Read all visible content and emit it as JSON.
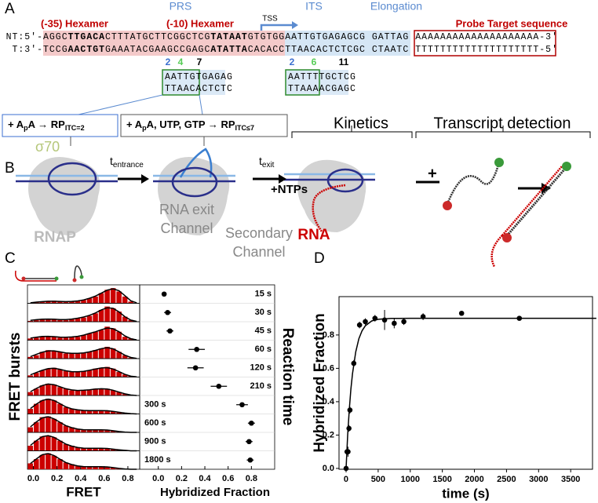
{
  "panels": {
    "a": "A",
    "b": "B",
    "c": "C",
    "d": "D"
  },
  "panel_a": {
    "prs": "PRS",
    "its": "ITS",
    "elongation": "Elongation",
    "hex35": "(-35) Hexamer",
    "hex10": "(-10) Hexamer",
    "tss": "TSS",
    "probe": "Probe Target sequence",
    "nt_prefix": "NT:5'-",
    "t_prefix": "T:3'-",
    "nt_strand": [
      {
        "text": "AGGC",
        "bold": false
      },
      {
        "text": "TTGACA",
        "bold": true
      },
      {
        "text": "CTTTATGCTTCGGCTCG",
        "bold": false
      },
      {
        "text": "TATAAT",
        "bold": true
      },
      {
        "text": "GTGTGG",
        "bold": false
      },
      {
        "text": "AATTGTGAGAGCG GATTAG",
        "bold": false
      },
      {
        "text": "AAAAAAAAAAAAAAAAAAAA",
        "bold": false
      },
      {
        "text": "-3'",
        "bold": false
      }
    ],
    "t_strand": [
      {
        "text": "TCCG",
        "bold": false
      },
      {
        "text": "AACTGT",
        "bold": true
      },
      {
        "text": "GAAATACGAAGCCGAGC",
        "bold": false
      },
      {
        "text": "ATATTA",
        "bold": true
      },
      {
        "text": "CACACC",
        "bold": false
      },
      {
        "text": "TTAACACTCTCGC CTAATC",
        "bold": false
      },
      {
        "text": "TTTTTTTTTTTTTTTTTTTT",
        "bold": false
      },
      {
        "text": "-5'",
        "bold": false
      }
    ],
    "box1": {
      "n1": "2",
      "n2": "4",
      "n3": "7",
      "top": "AATTGTGAGAG",
      "bottom": "TTAACACTCTC"
    },
    "box2": {
      "n1": "2",
      "n2": "6",
      "n3": "11",
      "top": "AATTTTGCTCG",
      "bottom": "TTAAAACGAGC"
    },
    "cond1": [
      "+ A",
      "p",
      "A → RP",
      "ITC=2"
    ],
    "cond2": [
      "+ A",
      "p",
      "A, UTP, GTP → RP",
      "ITC≤7"
    ]
  },
  "panel_b": {
    "sigma": "σ70",
    "t": "t",
    "entrance": "entrance",
    "exit": "exit",
    "ntps": "+NTPs",
    "kinetics": "Kinetics",
    "detection": "Transcript detection",
    "plus": "+",
    "rnap": "RNAP",
    "exit_channel": [
      "RNA exit",
      "Channel"
    ],
    "secondary_channel": [
      "Secondary",
      "Channel"
    ],
    "rna": "RNA"
  },
  "chart_data": [
    {
      "type": "histogram",
      "xlabel": "FRET",
      "ylabel": "FRET bursts",
      "color": "#cc0000",
      "fit_color": "#000000",
      "bins": [
        -0.05,
        0,
        0.05,
        0.1,
        0.15,
        0.2,
        0.25,
        0.3,
        0.35,
        0.4,
        0.45,
        0.5,
        0.55,
        0.6,
        0.65,
        0.7,
        0.75,
        0.8,
        0.85,
        0.9
      ],
      "fit_x": [
        -0.025,
        0.025,
        0.075,
        0.125,
        0.175,
        0.225,
        0.275,
        0.325,
        0.375,
        0.425,
        0.475,
        0.525,
        0.575,
        0.625,
        0.675,
        0.725,
        0.775,
        0.825,
        0.875
      ],
      "xlim": [
        -0.05,
        0.9
      ],
      "ylim": [
        0,
        10
      ],
      "xticks": [
        {
          "value": 0,
          "label": "0.0"
        },
        0.2,
        0.4,
        0.6,
        0.8
      ],
      "series": [
        {
          "values": [
            0,
            0.5,
            1,
            1,
            1.5,
            1,
            1,
            1,
            1.5,
            2,
            3,
            4,
            6,
            8,
            9,
            7,
            4,
            1,
            0
          ],
          "fit": [
            0.3,
            0.7,
            1,
            1.2,
            1.2,
            1.1,
            1,
            1.1,
            1.4,
            2,
            3,
            4.3,
            6,
            7.8,
            8.6,
            7.4,
            4.5,
            1.5,
            0.3
          ]
        },
        {
          "values": [
            0.5,
            1,
            1.5,
            1.5,
            1.5,
            1,
            1,
            1.5,
            2,
            2.5,
            3.5,
            5,
            7,
            9,
            8,
            6,
            3,
            1,
            0
          ],
          "fit": [
            0.8,
            1.2,
            1.5,
            1.6,
            1.5,
            1.3,
            1.3,
            1.6,
            2.1,
            2.8,
            3.8,
            5.2,
            7,
            8.3,
            8,
            5.8,
            3,
            1,
            0.2
          ]
        },
        {
          "values": [
            1,
            1.5,
            2,
            2.5,
            2,
            1.5,
            1.5,
            2,
            2,
            3,
            4,
            5,
            6,
            8,
            7,
            5,
            2,
            1,
            0
          ],
          "fit": [
            1.2,
            1.7,
            2.2,
            2.3,
            2.1,
            1.8,
            1.7,
            1.9,
            2.3,
            3,
            4,
            5,
            6.2,
            7.2,
            6.8,
            5,
            2.5,
            0.9,
            0.2
          ]
        },
        {
          "values": [
            1,
            2,
            4,
            5,
            4.5,
            4,
            3,
            3,
            3,
            3.5,
            4,
            5,
            6,
            7,
            6,
            4,
            2,
            0.5,
            0
          ],
          "fit": [
            1.2,
            2.5,
            3.8,
            4.6,
            4.6,
            4,
            3.4,
            3.1,
            3.1,
            3.4,
            4,
            4.9,
            5.9,
            6.5,
            5.8,
            4,
            2,
            0.7,
            0.1
          ]
        },
        {
          "values": [
            1,
            2.5,
            4,
            5,
            5.5,
            4.5,
            3.5,
            3,
            3,
            3.5,
            4,
            5,
            5.5,
            6,
            5,
            3,
            1.5,
            0.5,
            0
          ],
          "fit": [
            1.3,
            2.7,
            4,
            5,
            5.2,
            4.6,
            3.7,
            3.2,
            3.1,
            3.4,
            4,
            4.8,
            5.4,
            5.6,
            4.8,
            3.2,
            1.6,
            0.5,
            0.1
          ]
        },
        {
          "values": [
            2,
            4,
            6,
            7,
            6.5,
            5,
            4,
            3,
            3,
            3,
            3.5,
            4,
            4,
            4,
            3,
            2,
            1,
            0,
            0
          ],
          "fit": [
            2.3,
            4.2,
            5.9,
            6.8,
            6.4,
            5.2,
            4,
            3.3,
            3,
            3.1,
            3.4,
            3.8,
            4,
            3.8,
            3.1,
            2,
            1,
            0.3,
            0
          ]
        },
        {
          "values": [
            3,
            6,
            8,
            9,
            8,
            6,
            4,
            3,
            2.5,
            2,
            2,
            2,
            2,
            2,
            1.5,
            1,
            0.5,
            0,
            0
          ],
          "fit": [
            3.2,
            5.8,
            8,
            8.8,
            8,
            6.1,
            4.2,
            3,
            2.4,
            2.1,
            2,
            2,
            2,
            1.9,
            1.5,
            1,
            0.5,
            0.2,
            0
          ]
        },
        {
          "values": [
            3,
            6,
            9,
            9.5,
            8,
            6,
            4,
            3,
            2,
            1.5,
            1.5,
            1.5,
            1.5,
            1.5,
            1,
            0.5,
            0,
            0,
            0
          ],
          "fit": [
            3.3,
            6.2,
            8.6,
            9.3,
            8,
            6,
            4,
            2.8,
            2,
            1.6,
            1.5,
            1.5,
            1.5,
            1.4,
            1,
            0.5,
            0.2,
            0,
            0
          ]
        },
        {
          "values": [
            3,
            6,
            8.5,
            9,
            8,
            6,
            4,
            3,
            2,
            1.5,
            1.5,
            1.5,
            1.5,
            1.5,
            1,
            0.5,
            0.5,
            0,
            0
          ],
          "fit": [
            3.2,
            6,
            8.4,
            9,
            8,
            6,
            4,
            2.8,
            2,
            1.6,
            1.5,
            1.5,
            1.5,
            1.4,
            1,
            0.6,
            0.3,
            0,
            0
          ]
        },
        {
          "values": [
            3.5,
            6,
            8.5,
            9.5,
            8,
            6,
            4,
            3,
            2,
            1.5,
            1.5,
            1.5,
            1.5,
            1.5,
            1,
            0.5,
            0,
            0,
            0
          ],
          "fit": [
            3.4,
            6.1,
            8.6,
            9.3,
            8.1,
            6,
            4,
            2.8,
            2,
            1.6,
            1.5,
            1.5,
            1.5,
            1.4,
            1,
            0.5,
            0.2,
            0,
            0
          ]
        }
      ]
    },
    {
      "type": "dot",
      "xlabel": "Hybridized Fraction",
      "ylabel": "Reaction time",
      "color": "#000000",
      "categories": [
        "15 s",
        "30 s",
        "45 s",
        "60 s",
        "120 s",
        "210 s",
        "300 s",
        "600 s",
        "900 s",
        "1800 s"
      ],
      "values": [
        0.05,
        0.08,
        0.1,
        0.33,
        0.32,
        0.52,
        0.72,
        0.8,
        0.78,
        0.79
      ],
      "errors": [
        0.02,
        0.03,
        0.03,
        0.07,
        0.07,
        0.07,
        0.05,
        0.03,
        0.03,
        0.03
      ],
      "xlim": [
        -0.16,
        1.0
      ],
      "xticks": [
        {
          "value": 0,
          "label": "0.0"
        },
        0.2,
        0.4,
        0.6,
        0.8
      ]
    },
    {
      "type": "scatter",
      "xlabel": "time (s)",
      "ylabel": "Hybridized Fraction",
      "color": "#000000",
      "x": [
        0,
        15,
        30,
        45,
        60,
        120,
        210,
        300,
        450,
        600,
        750,
        900,
        1200,
        1800,
        2700
      ],
      "values": [
        0,
        0.1,
        0.1,
        0.24,
        0.35,
        0.63,
        0.86,
        0.88,
        0.9,
        0.89,
        0.87,
        0.88,
        0.91,
        0.93,
        0.9
      ],
      "errors": [
        0,
        0.02,
        0.03,
        0.02,
        0.02,
        0.02,
        0.02,
        0.02,
        0.02,
        0.06,
        0.03,
        0.02,
        0.02,
        0.01,
        0.01
      ],
      "fit": {
        "x": [
          0,
          25,
          50,
          75,
          100,
          150,
          200,
          250,
          300,
          400,
          500,
          700,
          1000,
          2000,
          3900
        ],
        "values": [
          0,
          0.199,
          0.354,
          0.475,
          0.569,
          0.699,
          0.778,
          0.826,
          0.855,
          0.884,
          0.894,
          0.899,
          0.9,
          0.9,
          0.9
        ]
      },
      "xlim": [
        -110,
        3840
      ],
      "ylim": [
        -0.005,
        1.03
      ],
      "xticks": [
        0,
        500,
        1000,
        1500,
        2000,
        2500,
        3000,
        3500
      ],
      "yticks": [
        {
          "value": 0,
          "label": "0.0"
        },
        0.2,
        0.4,
        0.6,
        0.8
      ]
    }
  ]
}
